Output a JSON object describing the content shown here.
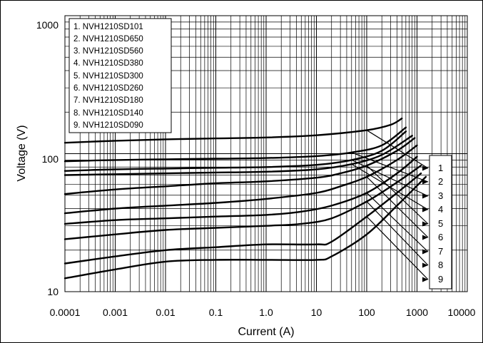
{
  "chart_data": {
    "type": "line",
    "title": "",
    "xlabel": "Current (A)",
    "ylabel": "Voltage (V)",
    "x_scale": "log",
    "y_scale": "log",
    "xlim": [
      0.0001,
      10000
    ],
    "ylim": [
      10,
      1000
    ],
    "grid": true,
    "legend_placement": "top-left",
    "x_tick_labels": [
      "0.0001",
      "0.001",
      "0.01",
      "0.1",
      "1.0",
      "10",
      "100",
      "1000",
      "10000"
    ],
    "x_ticks": [
      0.0001,
      0.001,
      0.01,
      0.1,
      1,
      10,
      100,
      1000,
      10000
    ],
    "y_tick_labels": [
      "10",
      "100",
      "1000"
    ],
    "y_ticks": [
      10,
      100,
      1000
    ],
    "callout_labels": [
      "1",
      "2",
      "3",
      "4",
      "5",
      "6",
      "7",
      "8",
      "9"
    ],
    "series": [
      {
        "name": "1. NVH1210SD101",
        "x": [
          0.0001,
          0.001,
          0.01,
          0.1,
          1,
          10,
          100,
          300,
          500
        ],
        "y": [
          120,
          124,
          127,
          129,
          131,
          136,
          148,
          162,
          180
        ]
      },
      {
        "name": "2. NVH1210SD650",
        "x": [
          0.0001,
          0.001,
          0.01,
          0.1,
          1,
          10,
          50,
          200,
          600
        ],
        "y": [
          88,
          90,
          91,
          92,
          93,
          96,
          102,
          115,
          155
        ]
      },
      {
        "name": "3. NVH1210SD560",
        "x": [
          0.0001,
          0.001,
          0.01,
          0.1,
          1,
          10,
          50,
          200,
          600
        ],
        "y": [
          75,
          77,
          78,
          79,
          80,
          83,
          90,
          105,
          145
        ]
      },
      {
        "name": "4. NVH1210SD380",
        "x": [
          0.0001,
          0.001,
          0.01,
          0.1,
          1,
          10,
          50,
          200,
          800
        ],
        "y": [
          70,
          71,
          72,
          73,
          74,
          77,
          84,
          98,
          135
        ]
      },
      {
        "name": "5. NVH1210SD300",
        "x": [
          0.0001,
          0.001,
          0.01,
          0.1,
          1,
          10,
          30,
          100,
          400,
          900
        ],
        "y": [
          51,
          55,
          58,
          61,
          63,
          67,
          72,
          82,
          105,
          130
        ]
      },
      {
        "name": "6. NVH1210SD260",
        "x": [
          0.0001,
          0.001,
          0.01,
          0.1,
          1,
          10,
          30,
          100,
          400,
          1000
        ],
        "y": [
          37,
          40,
          42,
          44,
          47,
          52,
          58,
          68,
          90,
          115
        ]
      },
      {
        "name": "7. NVH1210SD180",
        "x": [
          0.0001,
          0.001,
          0.01,
          0.1,
          1,
          5,
          20,
          100,
          400,
          1000
        ],
        "y": [
          31,
          33,
          34,
          35,
          36,
          38,
          42,
          52,
          72,
          95
        ]
      },
      {
        "name": "8. NVH1210SD140",
        "x": [
          0.0001,
          0.001,
          0.01,
          0.1,
          1,
          5,
          20,
          100,
          400,
          1200
        ],
        "y": [
          24,
          26,
          28,
          29,
          30,
          31,
          34,
          45,
          62,
          82
        ]
      },
      {
        "name": "9. NVH1210SD090",
        "x": [
          0.0001,
          0.001,
          0.01,
          0.1,
          1,
          10,
          20,
          100,
          400,
          1200
        ],
        "y": [
          16,
          18,
          20,
          21,
          22,
          22,
          23,
          35,
          52,
          72
        ]
      },
      {
        "name": "",
        "x": [
          0.0001,
          0.001,
          0.01,
          0.1,
          1,
          10,
          20,
          100,
          400,
          1500
        ],
        "y": [
          12.5,
          14.5,
          16.5,
          17,
          17,
          17,
          18,
          26,
          42,
          68
        ]
      }
    ]
  }
}
